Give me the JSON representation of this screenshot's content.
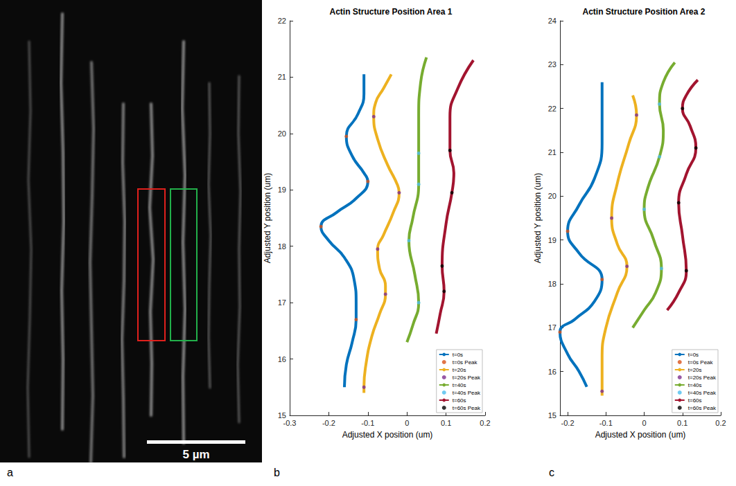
{
  "image_panel": {
    "panel_label": "a",
    "scale_bar": "5 µm",
    "boxes": [
      {
        "color": "#e0201c"
      },
      {
        "color": "#22b04a"
      }
    ]
  },
  "chart_data": [
    {
      "type": "line",
      "panel_label": "b",
      "title": "Actin Structure Position Area 1",
      "x_label": "Adjusted X position (um)",
      "y_label": "Adjusted Y position (um)",
      "xlim": [
        -0.3,
        0.2
      ],
      "xticks": [
        -0.3,
        -0.2,
        -0.1,
        0,
        0.1,
        0.2
      ],
      "ylim": [
        15,
        22
      ],
      "yticks": [
        15,
        16,
        17,
        18,
        19,
        20,
        21,
        22
      ],
      "grid": false,
      "legend": "lower right",
      "series": [
        {
          "name": "t=0s",
          "type": "line",
          "marker": "none",
          "line_style": "solid",
          "color": "#0072BD",
          "values": [
            [
              -0.11,
              21.05
            ],
            [
              -0.11,
              20.7
            ],
            [
              -0.125,
              20.35
            ],
            [
              -0.155,
              19.95
            ],
            [
              -0.14,
              19.6
            ],
            [
              -0.11,
              19.3
            ],
            [
              -0.1,
              19.15
            ],
            [
              -0.13,
              18.85
            ],
            [
              -0.18,
              18.6
            ],
            [
              -0.22,
              18.35
            ],
            [
              -0.2,
              18.1
            ],
            [
              -0.16,
              17.8
            ],
            [
              -0.135,
              17.4
            ],
            [
              -0.13,
              17.0
            ],
            [
              -0.13,
              16.7
            ],
            [
              -0.14,
              16.3
            ],
            [
              -0.155,
              15.9
            ],
            [
              -0.16,
              15.5
            ]
          ]
        },
        {
          "name": "t=0s Peak",
          "type": "scatter",
          "marker": "circle",
          "color": "#D95319",
          "values": [
            [
              -0.155,
              19.95
            ],
            [
              -0.1,
              19.15
            ],
            [
              -0.22,
              18.35
            ],
            [
              -0.13,
              16.7
            ]
          ]
        },
        {
          "name": "t=20s",
          "type": "line",
          "marker": "none",
          "line_style": "solid",
          "color": "#EDB120",
          "values": [
            [
              -0.04,
              21.05
            ],
            [
              -0.06,
              20.8
            ],
            [
              -0.08,
              20.55
            ],
            [
              -0.085,
              20.3
            ],
            [
              -0.075,
              19.9
            ],
            [
              -0.05,
              19.45
            ],
            [
              -0.025,
              19.1
            ],
            [
              -0.02,
              18.95
            ],
            [
              -0.035,
              18.6
            ],
            [
              -0.06,
              18.2
            ],
            [
              -0.075,
              17.95
            ],
            [
              -0.07,
              17.6
            ],
            [
              -0.055,
              17.3
            ],
            [
              -0.055,
              17.15
            ],
            [
              -0.07,
              16.8
            ],
            [
              -0.09,
              16.4
            ],
            [
              -0.105,
              15.9
            ],
            [
              -0.11,
              15.5
            ],
            [
              -0.11,
              15.4
            ]
          ]
        },
        {
          "name": "t=20s Peak",
          "type": "scatter",
          "marker": "circle",
          "color": "#7E2F8E",
          "values": [
            [
              -0.085,
              20.3
            ],
            [
              -0.02,
              18.95
            ],
            [
              -0.075,
              17.95
            ],
            [
              -0.055,
              17.15
            ],
            [
              -0.11,
              15.5
            ]
          ]
        },
        {
          "name": "t=40s",
          "type": "line",
          "marker": "none",
          "line_style": "solid",
          "color": "#77AC30",
          "values": [
            [
              0.05,
              21.35
            ],
            [
              0.035,
              20.9
            ],
            [
              0.03,
              20.3
            ],
            [
              0.03,
              19.65
            ],
            [
              0.03,
              19.1
            ],
            [
              0.015,
              18.5
            ],
            [
              0.005,
              18.1
            ],
            [
              0.02,
              17.5
            ],
            [
              0.03,
              17.0
            ],
            [
              0.015,
              16.6
            ],
            [
              0.0,
              16.3
            ]
          ]
        },
        {
          "name": "t=40s Peak",
          "type": "scatter",
          "marker": "circle",
          "color": "#4DBEEE",
          "values": [
            [
              0.03,
              19.65
            ],
            [
              0.03,
              19.1
            ],
            [
              0.005,
              18.1
            ],
            [
              0.03,
              17.0
            ]
          ]
        },
        {
          "name": "t=60s",
          "type": "line",
          "marker": "none",
          "line_style": "solid",
          "color": "#A2142F",
          "values": [
            [
              0.17,
              21.3
            ],
            [
              0.13,
              20.8
            ],
            [
              0.11,
              20.3
            ],
            [
              0.11,
              19.7
            ],
            [
              0.12,
              19.3
            ],
            [
              0.115,
              18.95
            ],
            [
              0.1,
              18.4
            ],
            [
              0.09,
              17.65
            ],
            [
              0.095,
              17.2
            ],
            [
              0.085,
              16.8
            ],
            [
              0.075,
              16.45
            ]
          ]
        },
        {
          "name": "t=60s Peak",
          "type": "scatter",
          "marker": "circle",
          "color": "#000000",
          "values": [
            [
              0.11,
              19.7
            ],
            [
              0.115,
              18.95
            ],
            [
              0.09,
              17.65
            ],
            [
              0.095,
              17.2
            ]
          ]
        }
      ]
    },
    {
      "type": "line",
      "panel_label": "c",
      "title": "Actin Structure Position Area 2",
      "x_label": "Adjusted X position (um)",
      "y_label": "Adjusted Y position (um)",
      "xlim": [
        -0.22,
        0.2
      ],
      "xticks": [
        -0.2,
        -0.1,
        0,
        0.1,
        0.2
      ],
      "ylim": [
        15,
        24
      ],
      "yticks": [
        15,
        16,
        17,
        18,
        19,
        20,
        21,
        22,
        23,
        24
      ],
      "grid": false,
      "legend": "lower right",
      "series": [
        {
          "name": "t=0s",
          "type": "line",
          "marker": "none",
          "line_style": "solid",
          "color": "#0072BD",
          "values": [
            [
              -0.11,
              22.6
            ],
            [
              -0.11,
              22.0
            ],
            [
              -0.11,
              21.2
            ],
            [
              -0.13,
              20.4
            ],
            [
              -0.17,
              19.8
            ],
            [
              -0.2,
              19.2
            ],
            [
              -0.17,
              18.7
            ],
            [
              -0.11,
              18.1
            ],
            [
              -0.13,
              17.6
            ],
            [
              -0.18,
              17.2
            ],
            [
              -0.22,
              16.9
            ],
            [
              -0.2,
              16.4
            ],
            [
              -0.17,
              16.0
            ],
            [
              -0.15,
              15.65
            ]
          ]
        },
        {
          "name": "t=0s Peak",
          "type": "scatter",
          "marker": "circle",
          "color": "#D95319",
          "values": [
            [
              -0.2,
              19.2
            ],
            [
              -0.11,
              18.1
            ],
            [
              -0.22,
              16.9
            ]
          ]
        },
        {
          "name": "t=20s",
          "type": "line",
          "marker": "none",
          "line_style": "solid",
          "color": "#EDB120",
          "values": [
            [
              -0.03,
              22.3
            ],
            [
              -0.02,
              21.85
            ],
            [
              -0.04,
              21.2
            ],
            [
              -0.07,
              20.3
            ],
            [
              -0.085,
              19.5
            ],
            [
              -0.07,
              18.9
            ],
            [
              -0.045,
              18.4
            ],
            [
              -0.07,
              17.8
            ],
            [
              -0.1,
              17.0
            ],
            [
              -0.11,
              16.3
            ],
            [
              -0.11,
              15.55
            ],
            [
              -0.11,
              15.45
            ]
          ]
        },
        {
          "name": "t=20s Peak",
          "type": "scatter",
          "marker": "circle",
          "color": "#7E2F8E",
          "values": [
            [
              -0.02,
              21.85
            ],
            [
              -0.085,
              19.5
            ],
            [
              -0.045,
              18.4
            ],
            [
              -0.11,
              15.55
            ]
          ]
        },
        {
          "name": "t=40s",
          "type": "line",
          "marker": "none",
          "line_style": "solid",
          "color": "#77AC30",
          "values": [
            [
              0.08,
              23.05
            ],
            [
              0.05,
              22.6
            ],
            [
              0.04,
              22.1
            ],
            [
              0.05,
              21.5
            ],
            [
              0.04,
              20.9
            ],
            [
              0.01,
              20.2
            ],
            [
              0.0,
              19.7
            ],
            [
              0.025,
              19.0
            ],
            [
              0.045,
              18.35
            ],
            [
              0.03,
              17.8
            ],
            [
              0.0,
              17.4
            ],
            [
              -0.03,
              17.0
            ]
          ]
        },
        {
          "name": "t=40s Peak",
          "type": "scatter",
          "marker": "circle",
          "color": "#4DBEEE",
          "values": [
            [
              0.04,
              22.1
            ],
            [
              0.04,
              20.9
            ],
            [
              0.0,
              19.7
            ],
            [
              0.045,
              18.35
            ]
          ]
        },
        {
          "name": "t=60s",
          "type": "line",
          "marker": "none",
          "line_style": "solid",
          "color": "#A2142F",
          "values": [
            [
              0.14,
              22.65
            ],
            [
              0.11,
              22.3
            ],
            [
              0.1,
              22.0
            ],
            [
              0.12,
              21.6
            ],
            [
              0.135,
              21.1
            ],
            [
              0.11,
              20.5
            ],
            [
              0.09,
              19.85
            ],
            [
              0.1,
              19.1
            ],
            [
              0.11,
              18.3
            ],
            [
              0.09,
              17.8
            ],
            [
              0.06,
              17.4
            ]
          ]
        },
        {
          "name": "t=60s Peak",
          "type": "scatter",
          "marker": "circle",
          "color": "#000000",
          "values": [
            [
              0.1,
              22.0
            ],
            [
              0.135,
              21.1
            ],
            [
              0.09,
              19.85
            ],
            [
              0.11,
              18.3
            ]
          ]
        }
      ]
    }
  ]
}
